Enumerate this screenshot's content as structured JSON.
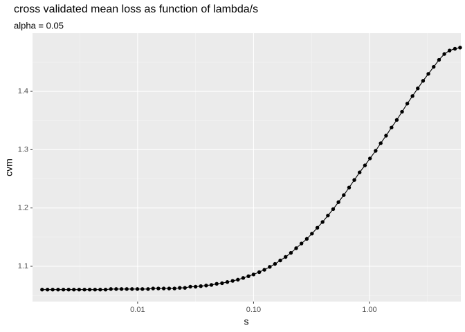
{
  "chart_data": {
    "type": "line",
    "title": "cross validated  mean loss as function of lambda/s",
    "subtitle": "alpha = 0.05",
    "x_label": "s",
    "y_label": "cvm",
    "xscale": "log",
    "grid": true,
    "color": "#000000",
    "x": [
      0.0015,
      0.00167,
      0.00185,
      0.00206,
      0.00229,
      0.00254,
      0.00282,
      0.00313,
      0.00348,
      0.00386,
      0.00429,
      0.00476,
      0.00529,
      0.00588,
      0.00653,
      0.00726,
      0.00806,
      0.00895,
      0.00995,
      0.011,
      0.0123,
      0.0136,
      0.0151,
      0.0168,
      0.0187,
      0.0208,
      0.0231,
      0.0256,
      0.0285,
      0.0316,
      0.0351,
      0.039,
      0.0433,
      0.0481,
      0.0535,
      0.0594,
      0.066,
      0.0733,
      0.0814,
      0.0904,
      0.1,
      0.112,
      0.124,
      0.138,
      0.153,
      0.17,
      0.189,
      0.21,
      0.233,
      0.259,
      0.288,
      0.319,
      0.355,
      0.394,
      0.438,
      0.486,
      0.54,
      0.6,
      0.667,
      0.74,
      0.822,
      0.914,
      1.01,
      1.13,
      1.25,
      1.39,
      1.55,
      1.72,
      1.91,
      2.12,
      2.35,
      2.61,
      2.9,
      3.22,
      3.58,
      3.98,
      4.42,
      4.91,
      5.46,
      6.05
    ],
    "values": [
      1.06,
      1.06,
      1.06,
      1.06,
      1.06,
      1.06,
      1.06,
      1.06,
      1.06,
      1.06,
      1.06,
      1.06,
      1.06,
      1.061,
      1.061,
      1.061,
      1.061,
      1.061,
      1.061,
      1.061,
      1.061,
      1.062,
      1.062,
      1.062,
      1.062,
      1.062,
      1.063,
      1.063,
      1.065,
      1.065,
      1.066,
      1.067,
      1.068,
      1.07,
      1.071,
      1.073,
      1.075,
      1.077,
      1.08,
      1.083,
      1.086,
      1.09,
      1.094,
      1.099,
      1.104,
      1.11,
      1.116,
      1.123,
      1.131,
      1.139,
      1.147,
      1.156,
      1.166,
      1.176,
      1.187,
      1.198,
      1.21,
      1.222,
      1.235,
      1.248,
      1.261,
      1.273,
      1.285,
      1.298,
      1.311,
      1.324,
      1.338,
      1.351,
      1.365,
      1.379,
      1.392,
      1.405,
      1.418,
      1.43,
      1.442,
      1.454,
      1.464,
      1.47,
      1.473,
      1.475
    ],
    "xlim": [
      0.00124,
      6.14
    ],
    "xticks": [
      {
        "value": 0.01,
        "label": "0.01"
      },
      {
        "value": 0.1,
        "label": "0.10"
      },
      {
        "value": 1,
        "label": "1.00"
      }
    ],
    "ylim": [
      1.0395,
      1.4997
    ],
    "yticks": [
      1.1,
      1.2,
      1.3,
      1.4
    ]
  }
}
